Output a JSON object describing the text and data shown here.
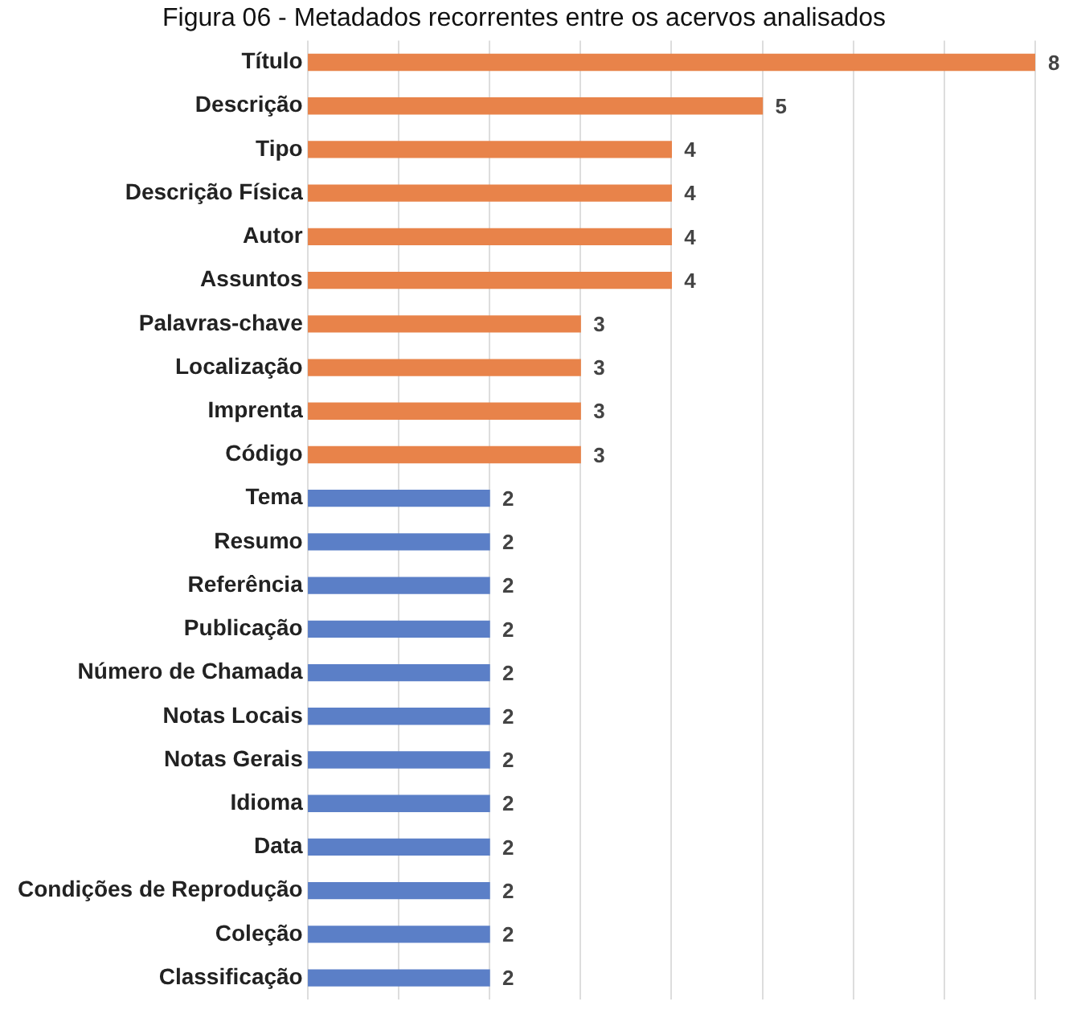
{
  "chart_data": {
    "type": "bar",
    "orientation": "horizontal",
    "title": "Figura 06 - Metadados recorrentes entre os acervos analisados",
    "categories": [
      "Título",
      "Descrição",
      "Tipo",
      "Descrição Física",
      "Autor",
      "Assuntos",
      "Palavras-chave",
      "Localização",
      "Imprenta",
      "Código",
      "Tema",
      "Resumo",
      "Referência",
      "Publicação",
      "Número de Chamada",
      "Notas Locais",
      "Notas Gerais",
      "Idioma",
      "Data",
      "Condições de Reprodução",
      "Coleção",
      "Classificação"
    ],
    "values": [
      8,
      5,
      4,
      4,
      4,
      4,
      3,
      3,
      3,
      3,
      2,
      2,
      2,
      2,
      2,
      2,
      2,
      2,
      2,
      2,
      2,
      2
    ],
    "colors": [
      "#e8834a",
      "#e8834a",
      "#e8834a",
      "#e8834a",
      "#e8834a",
      "#e8834a",
      "#e8834a",
      "#e8834a",
      "#e8834a",
      "#e8834a",
      "#5b7fc7",
      "#5b7fc7",
      "#5b7fc7",
      "#5b7fc7",
      "#5b7fc7",
      "#5b7fc7",
      "#5b7fc7",
      "#5b7fc7",
      "#5b7fc7",
      "#5b7fc7",
      "#5b7fc7",
      "#5b7fc7"
    ],
    "xlim": [
      0,
      8
    ],
    "xticks": [
      {
        "value": 0,
        "label": null
      },
      {
        "value": 1,
        "label": null
      },
      {
        "value": 2,
        "label": null
      },
      {
        "value": 3,
        "label": null
      },
      {
        "value": 4,
        "label": null
      },
      {
        "value": 5,
        "label": null
      },
      {
        "value": 6,
        "label": null
      },
      {
        "value": 7,
        "label": null
      },
      {
        "value": 8,
        "label": null
      }
    ],
    "grid": "x",
    "tick_labels": "y",
    "data_labels": true
  }
}
